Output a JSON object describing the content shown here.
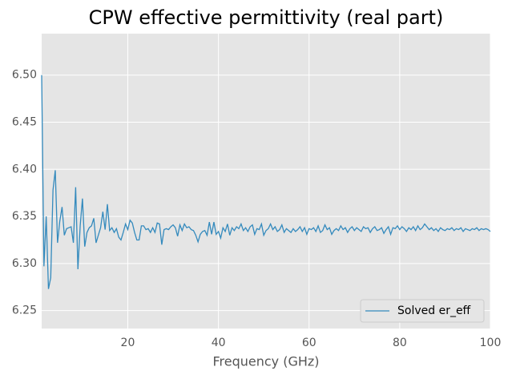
{
  "chart_data": {
    "type": "line",
    "title": "CPW effective permittivity (real part)",
    "x_label": "Frequency (GHz)",
    "x": [
      1,
      1.5,
      2,
      2.5,
      3,
      3.5,
      4,
      4.5,
      5,
      5.5,
      6,
      6.5,
      7,
      7.5,
      8,
      8.5,
      9,
      9.5,
      10,
      10.5,
      11,
      11.5,
      12,
      12.5,
      13,
      13.5,
      14,
      14.5,
      15,
      15.5,
      16,
      16.5,
      17,
      17.5,
      18,
      18.5,
      19,
      19.5,
      20,
      20.5,
      21,
      21.5,
      22,
      22.5,
      23,
      23.5,
      24,
      24.5,
      25,
      25.5,
      26,
      26.5,
      27,
      27.5,
      28,
      28.5,
      29,
      29.5,
      30,
      30.5,
      31,
      31.5,
      32,
      32.5,
      33,
      33.5,
      34,
      34.5,
      35,
      35.5,
      36,
      36.5,
      37,
      37.5,
      38,
      38.5,
      39,
      39.5,
      40,
      40.5,
      41,
      41.5,
      42,
      42.5,
      43,
      43.5,
      44,
      44.5,
      45,
      45.5,
      46,
      46.5,
      47,
      47.5,
      48,
      48.5,
      49,
      49.5,
      50,
      50.5,
      51,
      51.5,
      52,
      52.5,
      53,
      53.5,
      54,
      54.5,
      55,
      55.5,
      56,
      56.5,
      57,
      57.5,
      58,
      58.5,
      59,
      59.5,
      60,
      60.5,
      61,
      61.5,
      62,
      62.5,
      63,
      63.5,
      64,
      64.5,
      65,
      65.5,
      66,
      66.5,
      67,
      67.5,
      68,
      68.5,
      69,
      69.5,
      70,
      70.5,
      71,
      71.5,
      72,
      72.5,
      73,
      73.5,
      74,
      74.5,
      75,
      75.5,
      76,
      76.5,
      77,
      77.5,
      78,
      78.5,
      79,
      79.5,
      80,
      80.5,
      81,
      81.5,
      82,
      82.5,
      83,
      83.5,
      84,
      84.5,
      85,
      85.5,
      86,
      86.5,
      87,
      87.5,
      88,
      88.5,
      89,
      89.5,
      90,
      90.5,
      91,
      91.5,
      92,
      92.5,
      93,
      93.5,
      94,
      94.5,
      95,
      95.5,
      96,
      96.5,
      97,
      97.5,
      98,
      98.5,
      99,
      99.5,
      100
    ],
    "series": [
      {
        "name": "Solved er_eff",
        "color": "#348abd",
        "values": [
          6.5,
          6.297,
          6.35,
          6.273,
          6.285,
          6.378,
          6.399,
          6.322,
          6.345,
          6.36,
          6.33,
          6.337,
          6.338,
          6.339,
          6.322,
          6.381,
          6.294,
          6.34,
          6.369,
          6.318,
          6.333,
          6.338,
          6.34,
          6.348,
          6.322,
          6.33,
          6.338,
          6.355,
          6.336,
          6.363,
          6.335,
          6.338,
          6.333,
          6.337,
          6.328,
          6.325,
          6.333,
          6.342,
          6.336,
          6.346,
          6.343,
          6.333,
          6.325,
          6.325,
          6.34,
          6.34,
          6.336,
          6.337,
          6.333,
          6.338,
          6.333,
          6.343,
          6.342,
          6.32,
          6.336,
          6.337,
          6.336,
          6.339,
          6.341,
          6.338,
          6.329,
          6.341,
          6.335,
          6.342,
          6.338,
          6.339,
          6.336,
          6.335,
          6.33,
          6.323,
          6.331,
          6.334,
          6.335,
          6.33,
          6.344,
          6.331,
          6.344,
          6.331,
          6.334,
          6.327,
          6.338,
          6.334,
          6.342,
          6.33,
          6.338,
          6.335,
          6.339,
          6.337,
          6.342,
          6.335,
          6.338,
          6.334,
          6.339,
          6.341,
          6.331,
          6.337,
          6.336,
          6.342,
          6.33,
          6.335,
          6.337,
          6.342,
          6.336,
          6.339,
          6.334,
          6.336,
          6.341,
          6.333,
          6.337,
          6.335,
          6.333,
          6.337,
          6.334,
          6.336,
          6.339,
          6.334,
          6.338,
          6.331,
          6.337,
          6.336,
          6.338,
          6.334,
          6.34,
          6.333,
          6.335,
          6.341,
          6.336,
          6.338,
          6.331,
          6.335,
          6.337,
          6.335,
          6.34,
          6.336,
          6.338,
          6.333,
          6.337,
          6.339,
          6.335,
          6.338,
          6.336,
          6.334,
          6.339,
          6.337,
          6.338,
          6.333,
          6.337,
          6.339,
          6.335,
          6.336,
          6.338,
          6.332,
          6.336,
          6.339,
          6.331,
          6.338,
          6.337,
          6.34,
          6.336,
          6.339,
          6.337,
          6.334,
          6.338,
          6.336,
          6.339,
          6.335,
          6.34,
          6.336,
          6.338,
          6.342,
          6.339,
          6.336,
          6.338,
          6.335,
          6.337,
          6.334,
          6.338,
          6.336,
          6.335,
          6.337,
          6.336,
          6.338,
          6.335,
          6.337,
          6.336,
          6.338,
          6.334,
          6.337,
          6.336,
          6.335,
          6.337,
          6.336,
          6.338,
          6.335,
          6.337,
          6.336,
          6.337,
          6.336,
          6.334
        ]
      }
    ],
    "xlim": [
      1,
      100
    ],
    "xticks": [
      20,
      40,
      60,
      80,
      100
    ],
    "ylim": [
      6.231,
      6.544
    ],
    "yticks": [
      6.25,
      {
        "value": 6.3,
        "label": "6.30"
      },
      6.35,
      {
        "value": 6.4,
        "label": "6.40"
      },
      6.45,
      {
        "value": 6.5,
        "label": "6.50"
      }
    ],
    "grid": true,
    "legend": "lower right"
  }
}
